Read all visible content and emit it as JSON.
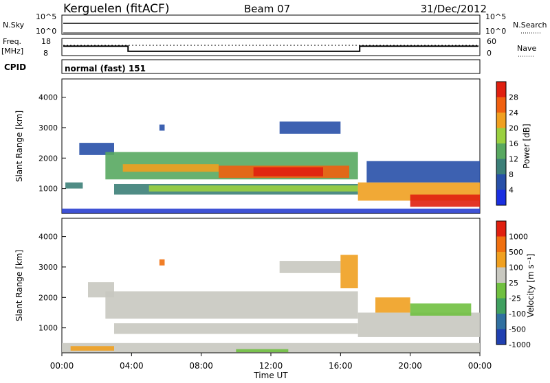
{
  "header": {
    "station": "Kerguelen (fitACF)",
    "beam": "Beam 07",
    "date": "31/Dec/2012"
  },
  "top_panels": {
    "nsky_label": "N.Sky",
    "nsky_ticks": [
      "10^5",
      "10^0"
    ],
    "nsearch_label": "N.Search",
    "nsearch_ticks": [
      "10^5",
      "10^0"
    ],
    "freq_label": "Freq.",
    "freq_unit": "[MHz]",
    "freq_ticks": [
      "18",
      "8"
    ],
    "nave_label": "Nave",
    "nave_ticks": [
      "60",
      "0"
    ],
    "cpid_label": "CPID",
    "cpid_value": "normal (fast) 151"
  },
  "chart_data": [
    {
      "type": "heatmap",
      "name": "power",
      "ylabel": "Slant Range [km]",
      "ylim": [
        180,
        4600
      ],
      "yticks": [
        "4000",
        "3000",
        "2000",
        "1000"
      ],
      "colorbar_label": "Power [dB]",
      "colorbar_ticks": [
        "28",
        "24",
        "20",
        "16",
        "12",
        "8",
        "4"
      ],
      "colorbar_colors": [
        "#1a2fe0",
        "#2850a8",
        "#3c7f78",
        "#58a860",
        "#9ad040",
        "#f0a020",
        "#f06010",
        "#e02010"
      ]
    },
    {
      "type": "heatmap",
      "name": "velocity",
      "ylabel": "Slant Range [km]",
      "ylim": [
        180,
        4600
      ],
      "yticks": [
        "4000",
        "3000",
        "2000",
        "1000"
      ],
      "colorbar_label": "Velocity [m s⁻¹]",
      "colorbar_ticks": [
        "1000",
        "500",
        "100",
        "25",
        "-25",
        "-100",
        "-500",
        "-1000"
      ],
      "colorbar_colors": [
        "#2040b0",
        "#3070a0",
        "#40a060",
        "#70c040",
        "#c8c8c0",
        "#f0a020",
        "#f07010",
        "#e02010"
      ]
    }
  ],
  "xaxis": {
    "label": "Time UT",
    "ticks": [
      "00:00",
      "04:00",
      "08:00",
      "12:00",
      "16:00",
      "20:00",
      "00:00"
    ]
  },
  "freq_series": {
    "hours": [
      0,
      3.8,
      3.8,
      17.1,
      17.1,
      24
    ],
    "mhz": [
      13.5,
      13.5,
      10.5,
      10.5,
      13.5,
      13.5
    ]
  }
}
